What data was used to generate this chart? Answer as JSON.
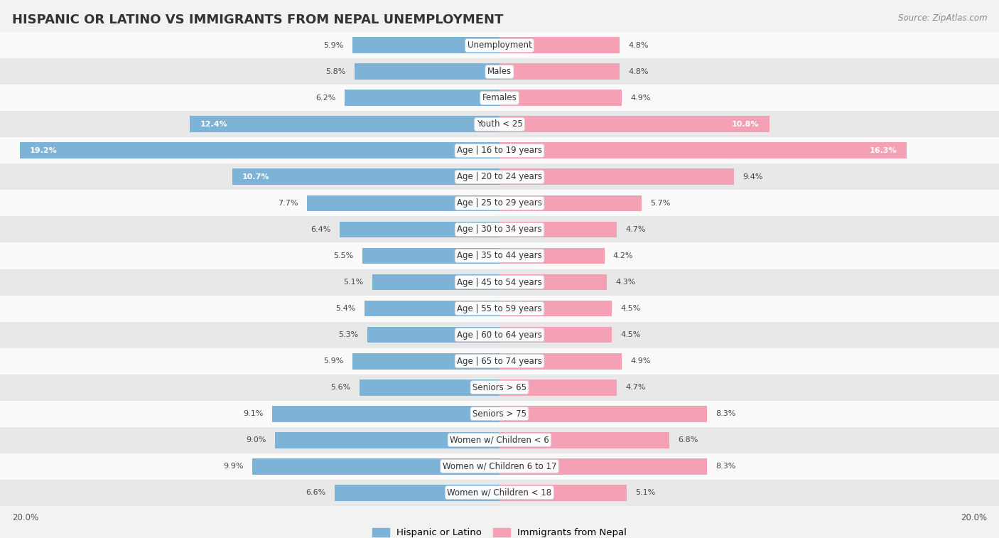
{
  "title": "HISPANIC OR LATINO VS IMMIGRANTS FROM NEPAL UNEMPLOYMENT",
  "source": "Source: ZipAtlas.com",
  "categories": [
    "Unemployment",
    "Males",
    "Females",
    "Youth < 25",
    "Age | 16 to 19 years",
    "Age | 20 to 24 years",
    "Age | 25 to 29 years",
    "Age | 30 to 34 years",
    "Age | 35 to 44 years",
    "Age | 45 to 54 years",
    "Age | 55 to 59 years",
    "Age | 60 to 64 years",
    "Age | 65 to 74 years",
    "Seniors > 65",
    "Seniors > 75",
    "Women w/ Children < 6",
    "Women w/ Children 6 to 17",
    "Women w/ Children < 18"
  ],
  "left_values": [
    5.9,
    5.8,
    6.2,
    12.4,
    19.2,
    10.7,
    7.7,
    6.4,
    5.5,
    5.1,
    5.4,
    5.3,
    5.9,
    5.6,
    9.1,
    9.0,
    9.9,
    6.6
  ],
  "right_values": [
    4.8,
    4.8,
    4.9,
    10.8,
    16.3,
    9.4,
    5.7,
    4.7,
    4.2,
    4.3,
    4.5,
    4.5,
    4.9,
    4.7,
    8.3,
    6.8,
    8.3,
    5.1
  ],
  "left_color": "#7eb3d8",
  "right_color": "#f4a0b5",
  "left_label": "Hispanic or Latino",
  "right_label": "Immigrants from Nepal",
  "bg_color": "#f2f2f2",
  "row_bg_light": "#fafafa",
  "row_bg_dark": "#e8e8e8",
  "max_value": 20.0,
  "axis_label": "20.0%",
  "title_fontsize": 13,
  "label_fontsize": 8.5,
  "value_fontsize": 8.0,
  "source_fontsize": 8.5
}
